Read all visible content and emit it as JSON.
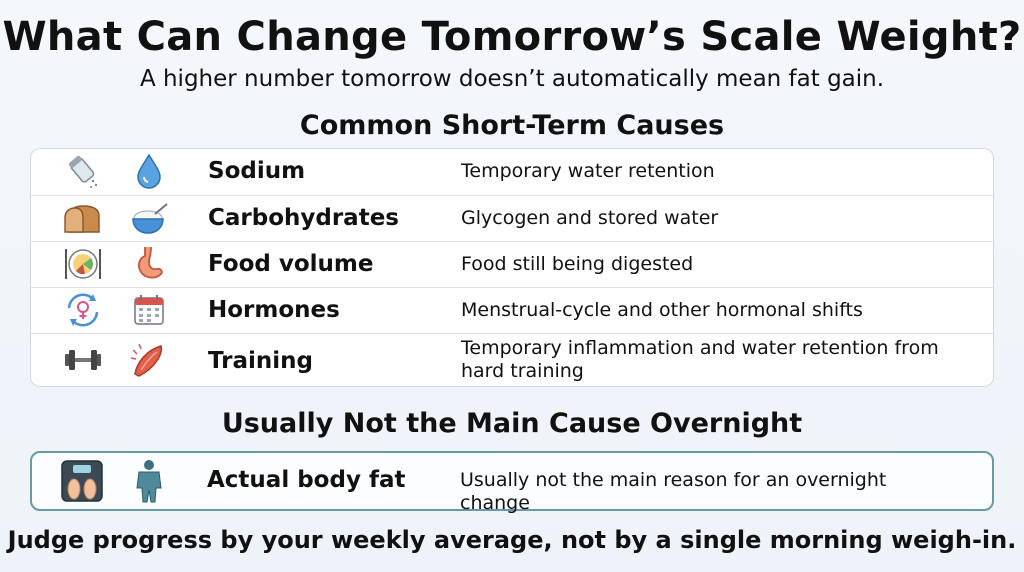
{
  "title": "What Can Change Tomorrow’s Scale Weight?",
  "subtitle": "A higher number tomorrow doesn’t automatically mean fat gain.",
  "common": {
    "heading": "Common Short-Term Causes",
    "rows": [
      {
        "label": "Sodium",
        "desc": "Temporary water retention",
        "icons": [
          "salt-shaker-icon",
          "water-drop-icon"
        ]
      },
      {
        "label": "Carbohydrates",
        "desc": "Glycogen and stored water",
        "icons": [
          "bread-icon",
          "rice-bowl-icon"
        ]
      },
      {
        "label": "Food volume",
        "desc": "Food still being digested",
        "icons": [
          "dinner-plate-icon",
          "stomach-icon"
        ]
      },
      {
        "label": "Hormones",
        "desc": "Menstrual-cycle and other hormonal shifts",
        "icons": [
          "hormone-cycle-icon",
          "calendar-icon"
        ]
      },
      {
        "label": "Training",
        "desc": "Temporary inflammation and water retention from hard training",
        "icons": [
          "dumbbell-icon",
          "sore-muscle-icon"
        ]
      }
    ]
  },
  "uncommon": {
    "heading": "Usually Not the Main Cause Overnight",
    "row": {
      "label": "Actual body fat",
      "desc": "Usually not the main reason for an overnight change",
      "icons": [
        "scale-feet-icon",
        "body-scan-icon"
      ]
    }
  },
  "footer": "Judge progress by your weekly average, not by a single morning weigh-in.",
  "colors": {
    "accent_border": "#6a98a6",
    "water_blue": "#4a90d9",
    "muscle_red": "#d9534f"
  }
}
